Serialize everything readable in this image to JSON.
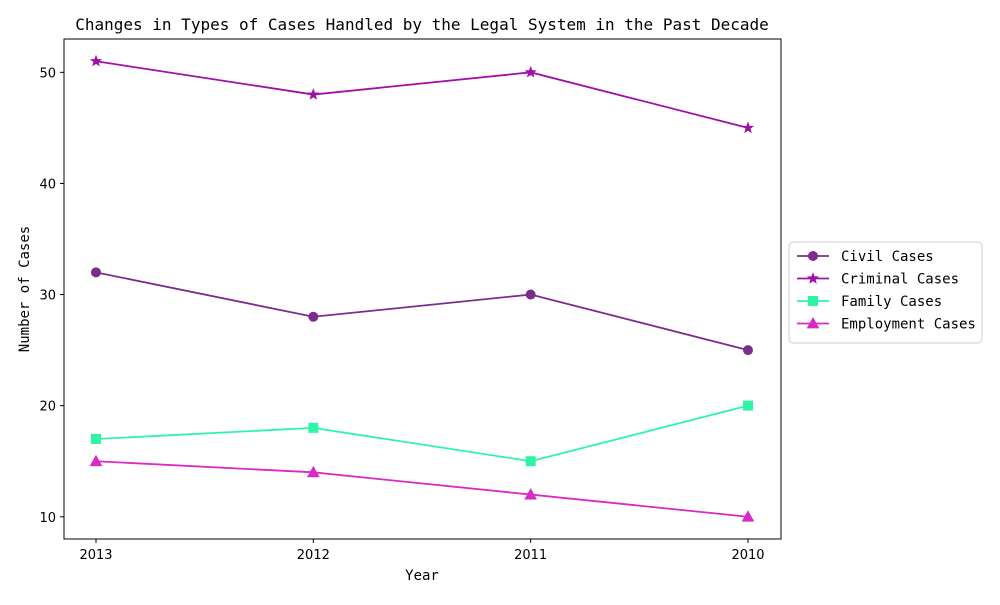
{
  "chart_data": {
    "type": "line",
    "title": "Changes in Types of Cases Handled by the Legal System in the Past Decade",
    "xlabel": "Year",
    "ylabel": "Number of Cases",
    "categories": [
      "2013",
      "2012",
      "2011",
      "2010"
    ],
    "ylim": [
      8,
      53
    ],
    "yticks": [
      10,
      20,
      30,
      40,
      50
    ],
    "grid": false,
    "legend_position": "center-right outside",
    "series": [
      {
        "name": "Civil Cases",
        "values": [
          32,
          28,
          30,
          25
        ],
        "color": "#7b2d8b",
        "marker": "circle"
      },
      {
        "name": "Criminal Cases",
        "values": [
          51,
          48,
          50,
          45
        ],
        "color": "#a010a8",
        "marker": "star"
      },
      {
        "name": "Family Cases",
        "values": [
          17,
          18,
          15,
          20
        ],
        "color": "#2ef5a5",
        "marker": "square"
      },
      {
        "name": "Employment Cases",
        "values": [
          15,
          14,
          12,
          10
        ],
        "color": "#d82ac4",
        "marker": "triangle"
      }
    ]
  }
}
